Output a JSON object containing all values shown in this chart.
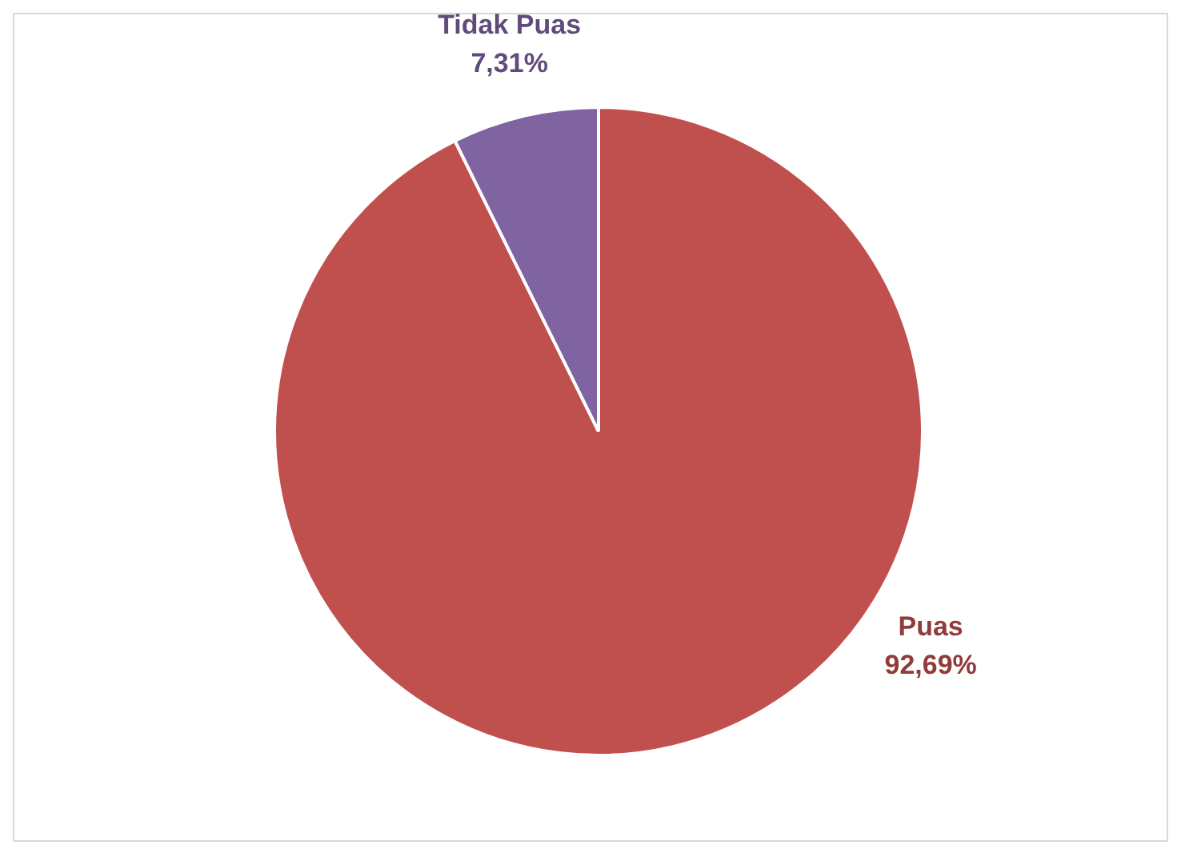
{
  "chart_data": {
    "type": "pie",
    "categories": [
      "Puas",
      "Tidak Puas"
    ],
    "values": [
      92.69,
      7.31
    ],
    "colors": [
      "#c0504d",
      "#8064a2"
    ],
    "value_labels": [
      "92,69%",
      "7,31%"
    ],
    "legend": false
  }
}
